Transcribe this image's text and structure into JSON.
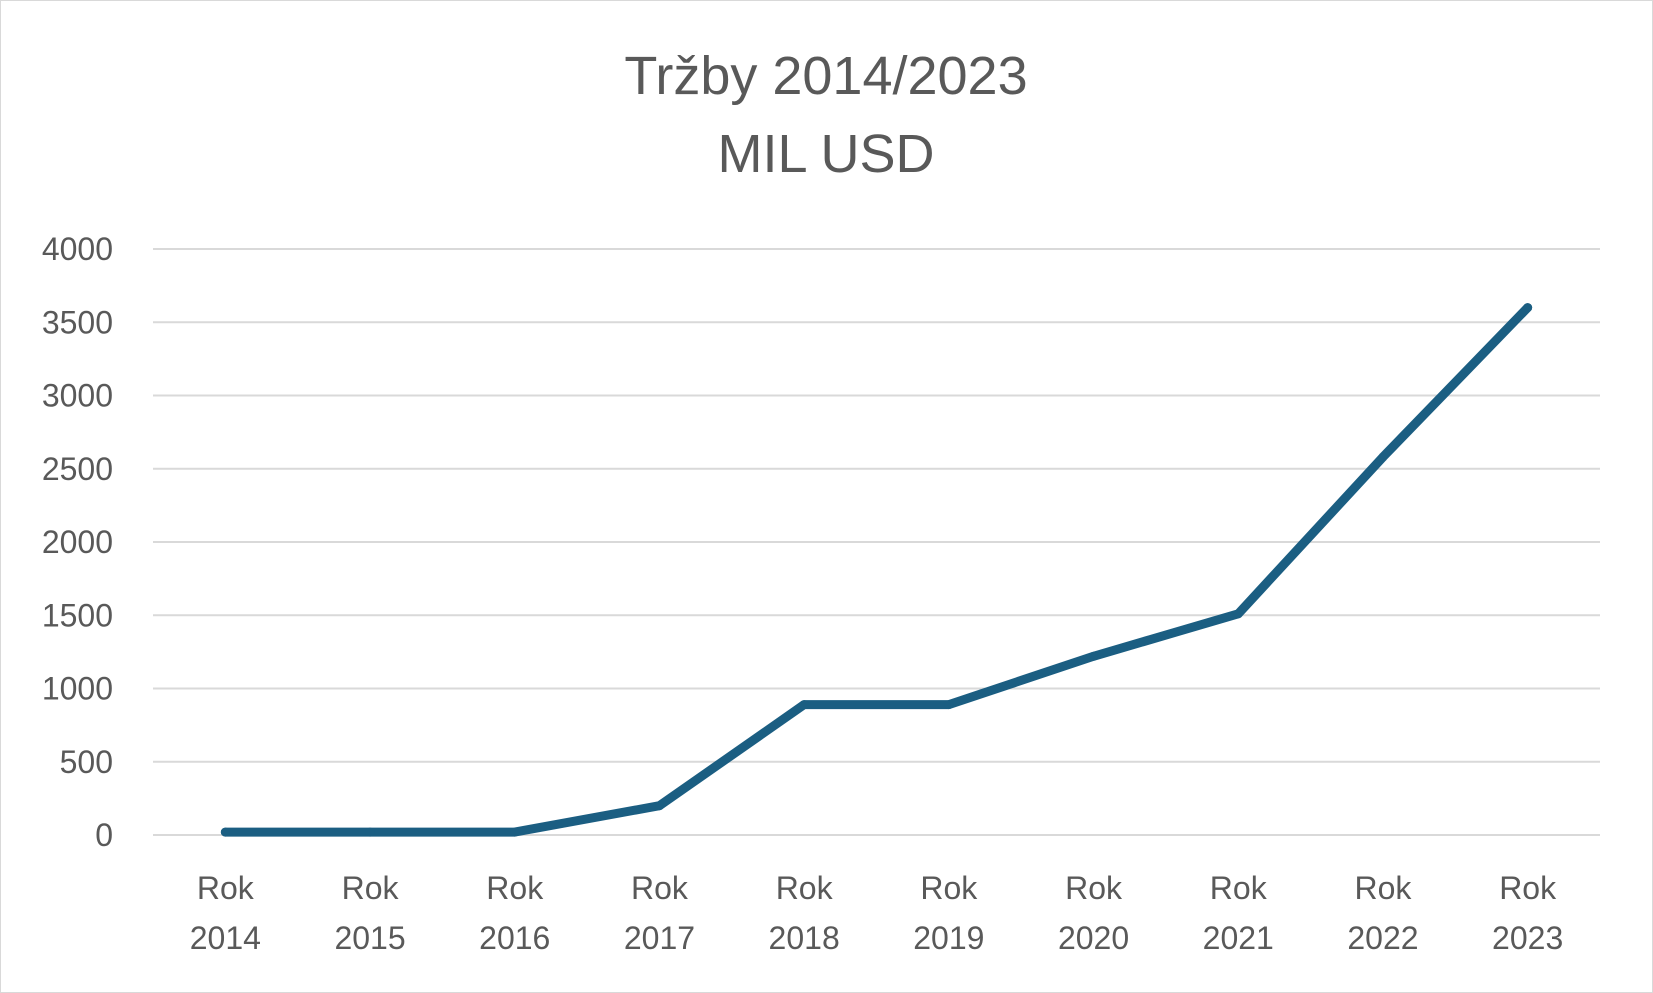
{
  "chart_data": {
    "type": "line",
    "title": "Tržby 2014/2023",
    "subtitle": "MIL USD",
    "categories": [
      [
        "Rok",
        "2014"
      ],
      [
        "Rok",
        "2015"
      ],
      [
        "Rok",
        "2016"
      ],
      [
        "Rok",
        "2017"
      ],
      [
        "Rok",
        "2018"
      ],
      [
        "Rok",
        "2019"
      ],
      [
        "Rok",
        "2020"
      ],
      [
        "Rok",
        "2021"
      ],
      [
        "Rok",
        "2022"
      ],
      [
        "Rok",
        "2023"
      ]
    ],
    "values": [
      20,
      20,
      20,
      200,
      890,
      890,
      1220,
      1510,
      2580,
      3600
    ],
    "yticks": [
      "0",
      "500",
      "1000",
      "1500",
      "2000",
      "2500",
      "3000",
      "3500",
      "4000"
    ],
    "ylim": [
      0,
      4000
    ],
    "grid": true,
    "legend": "none",
    "line_color": "#1b5e82",
    "xlabel": "",
    "ylabel": ""
  }
}
